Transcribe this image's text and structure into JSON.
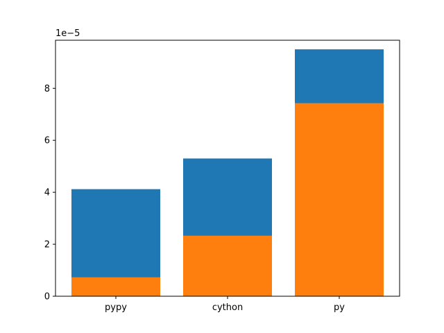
{
  "chart_data": {
    "type": "bar",
    "stacked": false,
    "categories": [
      "pypy",
      "cython",
      "py"
    ],
    "series": [
      {
        "values": [
          4.12e-05,
          5.3e-05,
          9.5e-05
        ],
        "color": "#1f77b4"
      },
      {
        "values": [
          7.3e-06,
          2.33e-05,
          7.43e-05
        ],
        "color": "#ff7f0e"
      }
    ],
    "ylim": [
      0,
      9.85e-05
    ],
    "yticks": [
      0,
      2e-05,
      4e-05,
      6e-05,
      8e-05
    ],
    "ytick_labels": [
      "0",
      "2",
      "4",
      "6",
      "8"
    ],
    "offset_text": "1e−5",
    "grid": false
  }
}
